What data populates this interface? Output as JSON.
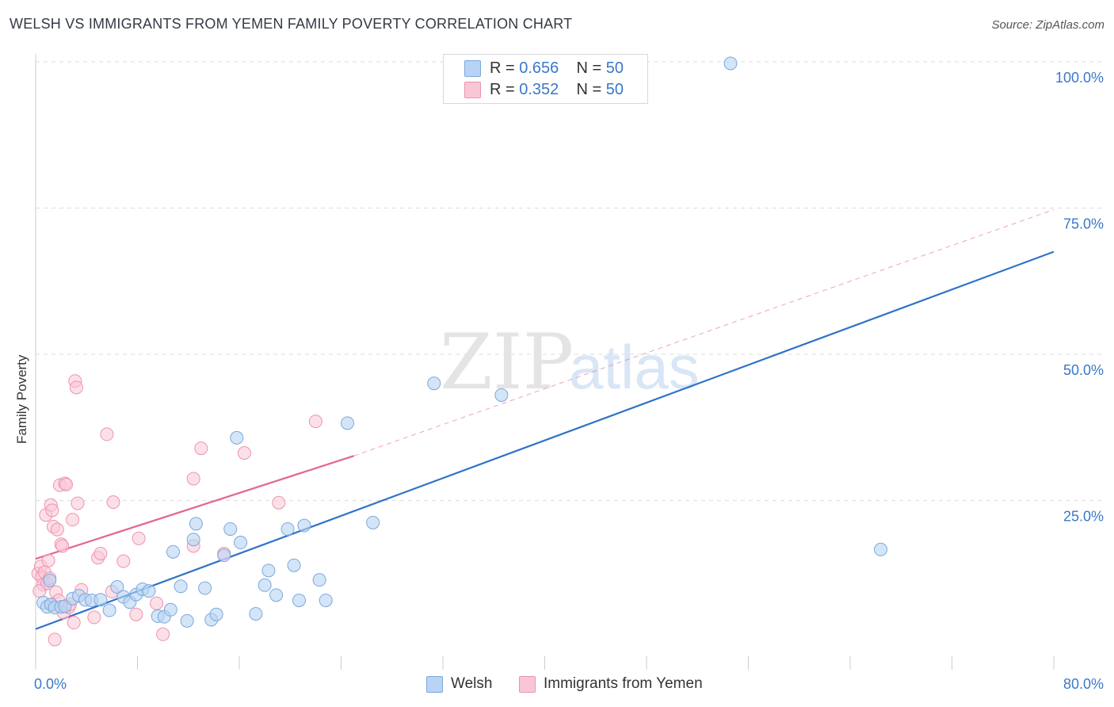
{
  "header": {
    "title": "WELSH VS IMMIGRANTS FROM YEMEN FAMILY POVERTY CORRELATION CHART",
    "source": "Source: ZipAtlas.com"
  },
  "watermark": {
    "zip": "ZIP",
    "atlas": "atlas"
  },
  "legend": {
    "welsh": {
      "r_label": "R = ",
      "r_value": "0.656",
      "n_label": "N = ",
      "n_value": "50"
    },
    "yemen": {
      "r_label": "R = ",
      "r_value": "0.352",
      "n_label": "N = ",
      "n_value": "50"
    }
  },
  "colors": {
    "welsh_fill": "#b8d3f3",
    "welsh_stroke": "#7aa8dc",
    "welsh_line": "#2f72c9",
    "yemen_fill": "#f9c6d5",
    "yemen_stroke": "#ee93ae",
    "yemen_line": "#e2668f",
    "axis_text": "#3a78c9",
    "grid": "#dcdcdc"
  },
  "chart_data": {
    "type": "scatter",
    "title": "WELSH VS IMMIGRANTS FROM YEMEN FAMILY POVERTY CORRELATION CHART",
    "xlabel": "",
    "ylabel": "Family Poverty",
    "xlim": [
      0,
      80
    ],
    "ylim": [
      0,
      100
    ],
    "x_tick_labels": [
      "0.0%",
      "80.0%"
    ],
    "y_ticks": [
      25,
      50,
      75,
      100
    ],
    "y_tick_labels": [
      "25.0%",
      "50.0%",
      "75.0%",
      "100.0%"
    ],
    "grid": true,
    "legend_position": "top-center",
    "series": [
      {
        "name": "Welsh",
        "r": 0.656,
        "n": 50,
        "trend": {
          "x": [
            0,
            80
          ],
          "y": [
            3.3,
            67.8
          ],
          "style": "solid"
        },
        "points": [
          [
            0.6,
            7.8
          ],
          [
            0.9,
            7.1
          ],
          [
            1.1,
            11.6
          ],
          [
            1.2,
            7.5
          ],
          [
            1.5,
            7.0
          ],
          [
            2.0,
            7.1
          ],
          [
            2.3,
            7.2
          ],
          [
            2.9,
            8.5
          ],
          [
            3.4,
            9.0
          ],
          [
            3.9,
            8.3
          ],
          [
            4.4,
            8.2
          ],
          [
            5.1,
            8.3
          ],
          [
            5.8,
            6.5
          ],
          [
            6.4,
            10.5
          ],
          [
            6.9,
            8.8
          ],
          [
            7.4,
            7.9
          ],
          [
            7.9,
            9.2
          ],
          [
            8.4,
            10.1
          ],
          [
            8.9,
            9.8
          ],
          [
            9.6,
            5.5
          ],
          [
            10.1,
            5.4
          ],
          [
            10.6,
            6.6
          ],
          [
            10.8,
            16.5
          ],
          [
            11.4,
            10.6
          ],
          [
            11.9,
            4.7
          ],
          [
            12.4,
            18.6
          ],
          [
            12.6,
            21.3
          ],
          [
            13.3,
            10.3
          ],
          [
            13.8,
            4.9
          ],
          [
            14.2,
            5.8
          ],
          [
            14.8,
            15.9
          ],
          [
            15.3,
            20.4
          ],
          [
            15.8,
            36.0
          ],
          [
            16.1,
            18.1
          ],
          [
            17.3,
            5.9
          ],
          [
            18.0,
            10.8
          ],
          [
            18.3,
            13.3
          ],
          [
            18.9,
            9.1
          ],
          [
            19.8,
            20.4
          ],
          [
            20.3,
            14.2
          ],
          [
            20.7,
            8.2
          ],
          [
            21.1,
            21.0
          ],
          [
            22.3,
            11.7
          ],
          [
            22.8,
            8.2
          ],
          [
            24.5,
            38.5
          ],
          [
            26.5,
            21.5
          ],
          [
            31.3,
            45.3
          ],
          [
            36.6,
            43.3
          ],
          [
            54.6,
            100.0
          ],
          [
            66.4,
            16.9
          ]
        ]
      },
      {
        "name": "Immigrants from Yemen",
        "r": 0.352,
        "n": 50,
        "trend": {
          "x": [
            0,
            25
          ],
          "y": [
            15.3,
            32.9
          ],
          "style": "solid",
          "extended_x": [
            25,
            80
          ],
          "extended_y": [
            32.9,
            75.0
          ],
          "extended_style": "dashed"
        },
        "points": [
          [
            0.2,
            12.8
          ],
          [
            0.4,
            14.0
          ],
          [
            0.5,
            12.2
          ],
          [
            0.6,
            10.9
          ],
          [
            0.7,
            13.0
          ],
          [
            0.8,
            22.8
          ],
          [
            0.9,
            11.1
          ],
          [
            1.0,
            15.0
          ],
          [
            1.1,
            12.0
          ],
          [
            1.2,
            24.5
          ],
          [
            1.3,
            23.6
          ],
          [
            1.4,
            20.8
          ],
          [
            1.5,
            1.5
          ],
          [
            1.6,
            9.6
          ],
          [
            1.7,
            20.3
          ],
          [
            1.8,
            8.2
          ],
          [
            1.9,
            27.9
          ],
          [
            2.0,
            17.8
          ],
          [
            2.1,
            17.5
          ],
          [
            2.2,
            6.1
          ],
          [
            2.3,
            28.2
          ],
          [
            2.4,
            28.0
          ],
          [
            2.6,
            7.0
          ],
          [
            2.9,
            22.0
          ],
          [
            3.0,
            4.4
          ],
          [
            3.1,
            45.7
          ],
          [
            3.2,
            44.6
          ],
          [
            3.3,
            24.8
          ],
          [
            3.6,
            10.0
          ],
          [
            4.6,
            5.3
          ],
          [
            4.9,
            15.5
          ],
          [
            5.1,
            16.2
          ],
          [
            5.6,
            36.6
          ],
          [
            6.0,
            9.7
          ],
          [
            6.1,
            25.0
          ],
          [
            6.9,
            14.9
          ],
          [
            7.9,
            5.8
          ],
          [
            8.1,
            18.8
          ],
          [
            9.5,
            7.7
          ],
          [
            10.0,
            2.4
          ],
          [
            12.4,
            29.0
          ],
          [
            12.4,
            17.5
          ],
          [
            13.0,
            34.2
          ],
          [
            14.8,
            16.2
          ],
          [
            16.4,
            33.4
          ],
          [
            19.1,
            24.9
          ],
          [
            22.0,
            38.8
          ],
          [
            0.3,
            9.8
          ],
          [
            1.25,
            7.4
          ],
          [
            2.7,
            7.5
          ]
        ]
      }
    ]
  },
  "bottom_legend": {
    "welsh_label": "Welsh",
    "yemen_label": "Immigrants from Yemen"
  }
}
